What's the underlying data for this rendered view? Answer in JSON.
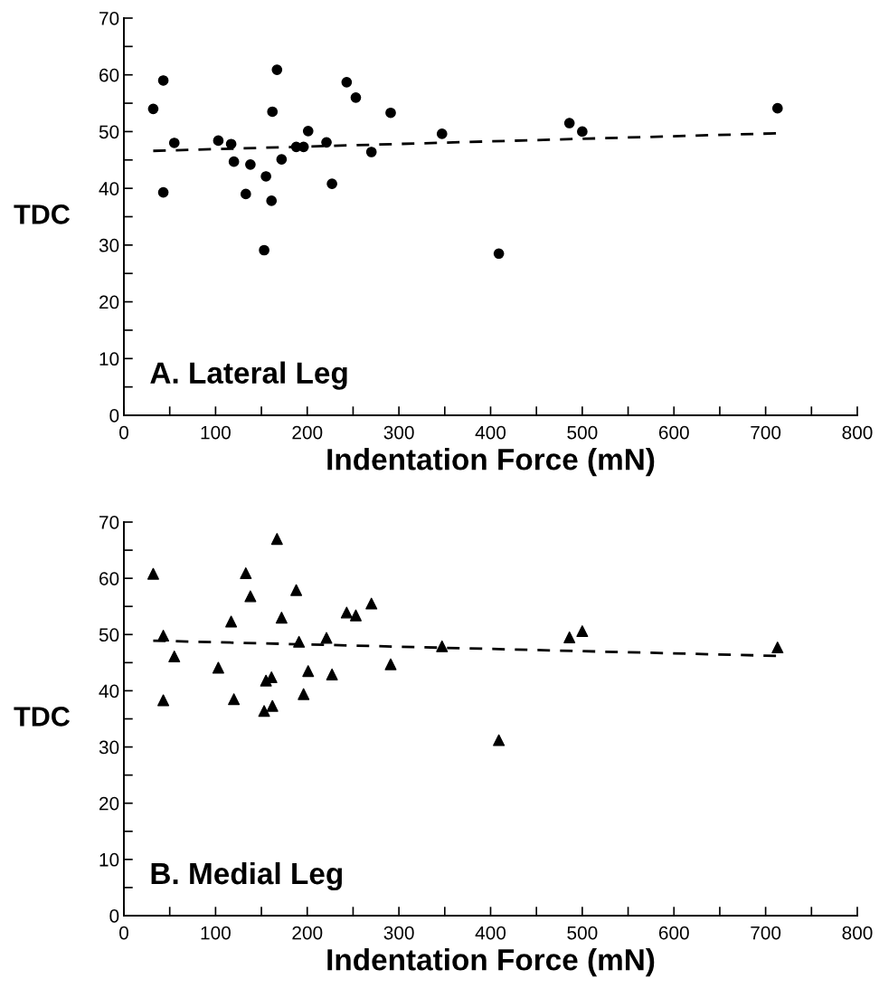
{
  "chart_data": [
    {
      "type": "scatter",
      "xlabel": "Indentation Force (mN)",
      "ylabel": "TDC",
      "annotations": [
        "A. Lateral Leg"
      ],
      "xlim": [
        0,
        800
      ],
      "ylim": [
        0,
        70
      ],
      "xticks": [
        0,
        {
          "value": 50,
          "label": null
        },
        100,
        {
          "value": 150,
          "label": null
        },
        200,
        {
          "value": 250,
          "label": null
        },
        300,
        {
          "value": 350,
          "label": null
        },
        400,
        {
          "value": 450,
          "label": null
        },
        500,
        {
          "value": 550,
          "label": null
        },
        600,
        {
          "value": 650,
          "label": null
        },
        700,
        {
          "value": 750,
          "label": null
        },
        800
      ],
      "yticks": [
        0,
        {
          "value": 5,
          "label": null
        },
        10,
        {
          "value": 15,
          "label": null
        },
        20,
        {
          "value": 25,
          "label": null
        },
        30,
        {
          "value": 35,
          "label": null
        },
        40,
        {
          "value": 45,
          "label": null
        },
        50,
        {
          "value": 55,
          "label": null
        },
        60,
        {
          "value": 65,
          "label": null
        },
        70
      ],
      "grid": false,
      "legend": false,
      "series": [
        {
          "type": "scatter",
          "color": "#000000",
          "marker": "circle",
          "x": [
            32,
            43,
            43,
            55,
            103,
            117,
            120,
            138,
            133,
            153,
            155,
            161,
            162,
            167,
            172,
            188,
            196,
            201,
            221,
            227,
            243,
            253,
            270,
            291,
            347,
            409,
            486,
            500,
            713
          ],
          "values": [
            54,
            59,
            39.3,
            48,
            48.4,
            47.8,
            44.7,
            44.2,
            39,
            29.1,
            42.1,
            37.8,
            53.5,
            60.9,
            45.1,
            47.3,
            47.3,
            50.1,
            48.1,
            40.8,
            58.7,
            56,
            46.4,
            53.3,
            49.6,
            28.5,
            51.5,
            50,
            54.1
          ]
        },
        {
          "type": "line",
          "color": "#000000",
          "line_style": "dashed",
          "marker": "none",
          "x": [
            32,
            713
          ],
          "values": [
            46.6,
            49.7
          ]
        }
      ]
    },
    {
      "type": "scatter",
      "xlabel": "Indentation Force (mN)",
      "ylabel": "TDC",
      "annotations": [
        "B. Medial Leg"
      ],
      "xlim": [
        0,
        800
      ],
      "ylim": [
        0,
        70
      ],
      "xticks": [
        0,
        {
          "value": 50,
          "label": null
        },
        100,
        {
          "value": 150,
          "label": null
        },
        200,
        {
          "value": 250,
          "label": null
        },
        300,
        {
          "value": 350,
          "label": null
        },
        400,
        {
          "value": 450,
          "label": null
        },
        500,
        {
          "value": 550,
          "label": null
        },
        600,
        {
          "value": 650,
          "label": null
        },
        700,
        {
          "value": 750,
          "label": null
        },
        800
      ],
      "yticks": [
        0,
        {
          "value": 5,
          "label": null
        },
        10,
        {
          "value": 15,
          "label": null
        },
        20,
        {
          "value": 25,
          "label": null
        },
        30,
        {
          "value": 35,
          "label": null
        },
        40,
        {
          "value": 45,
          "label": null
        },
        50,
        {
          "value": 55,
          "label": null
        },
        60,
        {
          "value": 65,
          "label": null
        },
        70
      ],
      "grid": false,
      "legend": false,
      "series": [
        {
          "type": "scatter",
          "color": "#000000",
          "marker": "triangle",
          "x": [
            32,
            43,
            43,
            55,
            103,
            117,
            120,
            133,
            138,
            153,
            155,
            161,
            162,
            167,
            172,
            188,
            191,
            196,
            201,
            221,
            227,
            243,
            253,
            270,
            291,
            347,
            409,
            486,
            500,
            713
          ],
          "values": [
            60.8,
            49.8,
            38.3,
            46.1,
            44.1,
            52.3,
            38.5,
            60.9,
            56.8,
            36.4,
            41.8,
            42.4,
            37.3,
            67,
            53,
            57.9,
            48.7,
            39.4,
            43.5,
            49.4,
            42.9,
            53.9,
            53.4,
            55.5,
            44.7,
            47.9,
            31.2,
            49.5,
            50.6,
            47.7
          ]
        },
        {
          "type": "line",
          "color": "#000000",
          "line_style": "dashed",
          "marker": "none",
          "x": [
            32,
            713
          ],
          "values": [
            48.9,
            46.2
          ]
        }
      ]
    }
  ]
}
